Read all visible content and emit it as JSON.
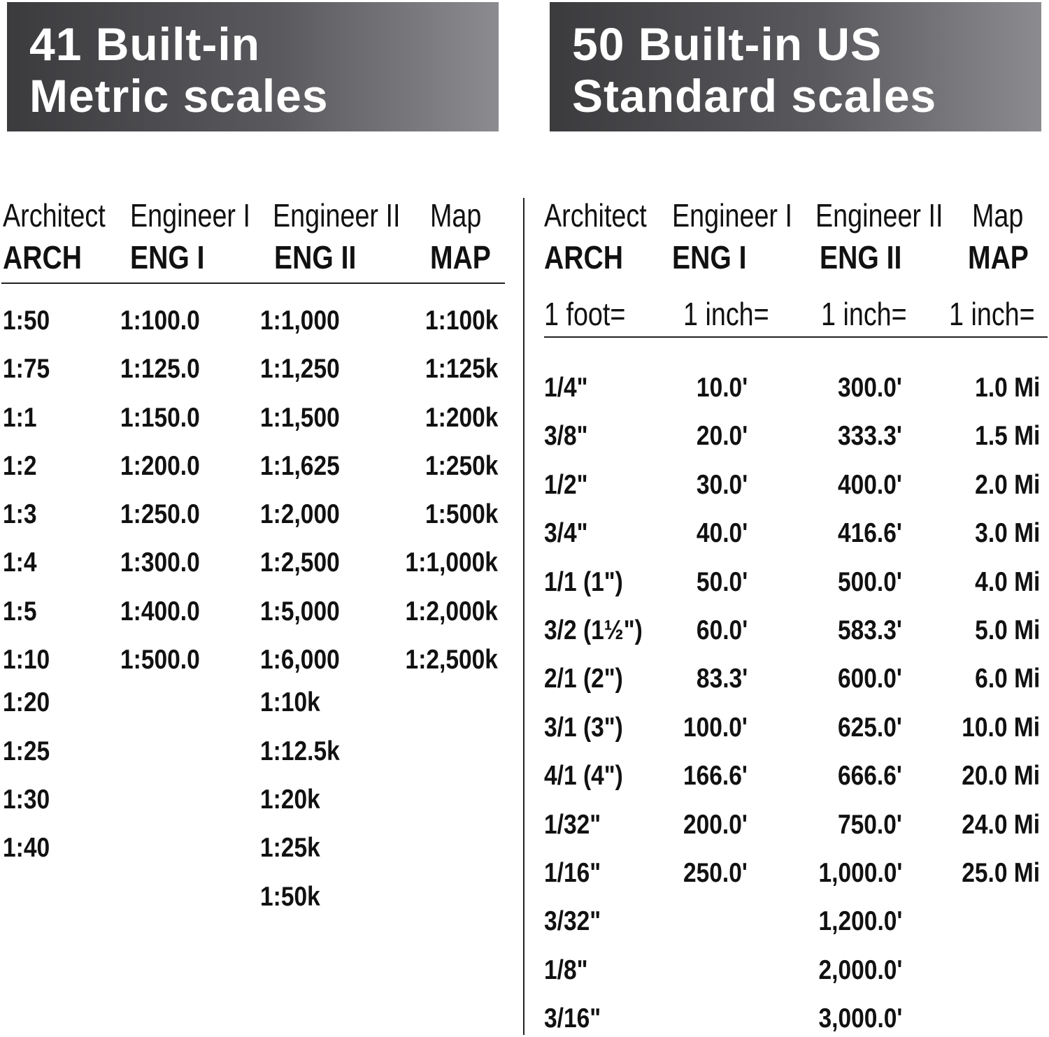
{
  "metric": {
    "banner": [
      "41 Built-in",
      "Metric scales"
    ],
    "headers": [
      "Architect",
      "Engineer I",
      "Engineer II",
      "Map"
    ],
    "abbrs": [
      "ARCH",
      "ENG I",
      "ENG II",
      "MAP"
    ],
    "columns": [
      [
        "1:50",
        "1:75",
        "1:1",
        "1:2",
        "1:3",
        "1:4",
        "1:5",
        "1:10",
        "1:20",
        "1:25",
        "1:30",
        "1:40"
      ],
      [
        "1:100.0",
        "1:125.0",
        "1:150.0",
        "1:200.0",
        "1:250.0",
        "1:300.0",
        "1:400.0",
        "1:500.0"
      ],
      [
        "1:1,000",
        "1:1,250",
        "1:1,500",
        "1:1,625",
        "1:2,000",
        "1:2,500",
        "1:5,000",
        "1:6,000",
        "1:10k",
        "1:12.5k",
        "1:20k",
        "1:25k",
        "1:50k"
      ],
      [
        "1:100k",
        "1:125k",
        "1:200k",
        "1:250k",
        "1:500k",
        "1:1,000k",
        "1:2,000k",
        "1:2,500k"
      ]
    ]
  },
  "us": {
    "banner": [
      "50 Built-in US",
      "Standard scales"
    ],
    "headers": [
      "Architect",
      "Engineer I",
      "Engineer II",
      "Map"
    ],
    "abbrs": [
      "ARCH",
      "ENG I",
      "ENG II",
      "MAP"
    ],
    "units": [
      "1 foot=",
      "1 inch=",
      "1 inch=",
      "1 inch="
    ],
    "columns": [
      [
        "1/4\"",
        "3/8\"",
        "1/2\"",
        "3/4\"",
        "1/1 (1\")",
        "3/2 (1½\")",
        "2/1 (2\")",
        "3/1 (3\")",
        "4/1 (4\")",
        "1/32\"",
        "1/16\"",
        "3/32\"",
        "1/8\"",
        "3/16\""
      ],
      [
        "10.0'",
        "20.0'",
        "30.0'",
        "40.0'",
        "50.0'",
        "60.0'",
        "83.3'",
        "100.0'",
        "166.6'",
        "200.0'",
        "250.0'"
      ],
      [
        "300.0'",
        "333.3'",
        "400.0'",
        "416.6'",
        "500.0'",
        "583.3'",
        "600.0'",
        "625.0'",
        "666.6'",
        "750.0'",
        "1,000.0'",
        "1,200.0'",
        "2,000.0'",
        "3,000.0'"
      ],
      [
        "1.0 Mi",
        "1.5 Mi",
        "2.0 Mi",
        "3.0 Mi",
        "4.0 Mi",
        "5.0 Mi",
        "6.0 Mi",
        "10.0 Mi",
        "20.0 Mi",
        "24.0 Mi",
        "25.0 Mi"
      ]
    ]
  }
}
